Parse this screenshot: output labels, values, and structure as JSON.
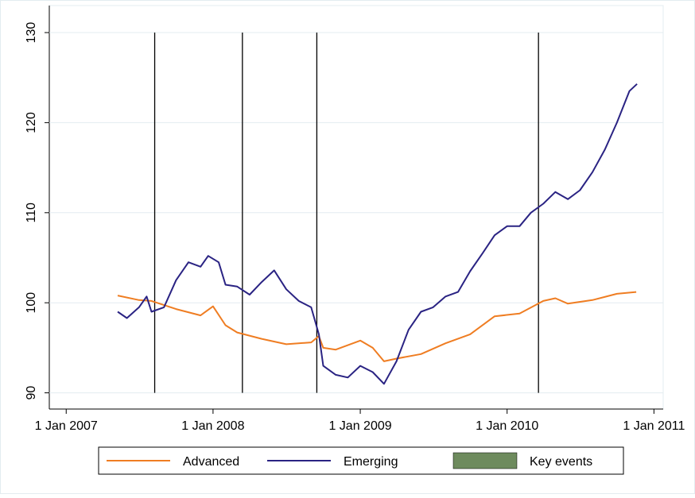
{
  "chart_data": {
    "type": "line",
    "xlim": [
      "2006-11-20",
      "2011-01-24"
    ],
    "xticks": [
      {
        "value": "2007-01-01",
        "label": "1 Jan 2007"
      },
      {
        "value": "2008-01-01",
        "label": "1 Jan 2008"
      },
      {
        "value": "2009-01-01",
        "label": "1 Jan 2009"
      },
      {
        "value": "2010-01-01",
        "label": "1 Jan 2010"
      },
      {
        "value": "2011-01-01",
        "label": "1 Jan 2011"
      }
    ],
    "ylim": [
      88.2,
      133
    ],
    "yticks": [
      90,
      100,
      110,
      120,
      130
    ],
    "grid": true,
    "series": [
      {
        "name": "Advanced",
        "color": "#ef7d22",
        "x": [
          "2007-05-09",
          "2007-07-01",
          "2007-08-01",
          "2007-10-01",
          "2007-12-01",
          "2008-01-01",
          "2008-02-01",
          "2008-03-01",
          "2008-05-01",
          "2008-07-01",
          "2008-09-01",
          "2008-09-20",
          "2008-10-01",
          "2008-11-01",
          "2009-01-01",
          "2009-02-01",
          "2009-03-01",
          "2009-04-01",
          "2009-06-01",
          "2009-08-01",
          "2009-10-01",
          "2009-12-01",
          "2010-02-01",
          "2010-04-01",
          "2010-05-01",
          "2010-06-01",
          "2010-08-01",
          "2010-10-01",
          "2010-11-18"
        ],
        "values": [
          100.8,
          100.3,
          100.2,
          99.3,
          98.6,
          99.6,
          97.5,
          96.7,
          96.0,
          95.4,
          95.6,
          96.3,
          95.0,
          94.8,
          95.8,
          95.0,
          93.5,
          93.8,
          94.3,
          95.5,
          96.5,
          98.5,
          98.8,
          100.2,
          100.5,
          99.9,
          100.3,
          101.0,
          101.2
        ]
      },
      {
        "name": "Emerging",
        "color": "#2a2383",
        "x": [
          "2007-05-09",
          "2007-06-01",
          "2007-07-01",
          "2007-07-20",
          "2007-08-01",
          "2007-09-01",
          "2007-10-01",
          "2007-11-01",
          "2007-12-01",
          "2007-12-20",
          "2008-01-15",
          "2008-02-01",
          "2008-03-01",
          "2008-04-01",
          "2008-05-01",
          "2008-06-01",
          "2008-07-01",
          "2008-08-01",
          "2008-09-01",
          "2008-09-20",
          "2008-10-01",
          "2008-11-01",
          "2008-12-01",
          "2009-01-01",
          "2009-02-01",
          "2009-03-01",
          "2009-04-01",
          "2009-05-01",
          "2009-06-01",
          "2009-07-01",
          "2009-08-01",
          "2009-09-01",
          "2009-10-01",
          "2009-11-01",
          "2009-12-01",
          "2010-01-01",
          "2010-02-01",
          "2010-03-01",
          "2010-04-01",
          "2010-05-01",
          "2010-06-01",
          "2010-07-01",
          "2010-08-01",
          "2010-09-01",
          "2010-10-01",
          "2010-11-01",
          "2010-11-20"
        ],
        "values": [
          99.0,
          98.3,
          99.5,
          100.7,
          99.0,
          99.5,
          102.5,
          104.5,
          104.0,
          105.2,
          104.5,
          102.0,
          101.8,
          100.9,
          102.3,
          103.6,
          101.5,
          100.2,
          99.5,
          96.5,
          93.0,
          92.0,
          91.7,
          93.0,
          92.3,
          91.0,
          93.5,
          97.0,
          99.0,
          99.5,
          100.7,
          101.2,
          103.5,
          105.5,
          107.5,
          108.5,
          108.5,
          110.0,
          111.0,
          112.3,
          111.5,
          112.5,
          114.5,
          117.0,
          120.0,
          123.5,
          124.3
        ]
      }
    ],
    "events": {
      "name": "Key events",
      "color": "#6e8b5e",
      "x": [
        "2007-08-09",
        "2008-03-14",
        "2008-09-15",
        "2010-03-20"
      ]
    }
  }
}
